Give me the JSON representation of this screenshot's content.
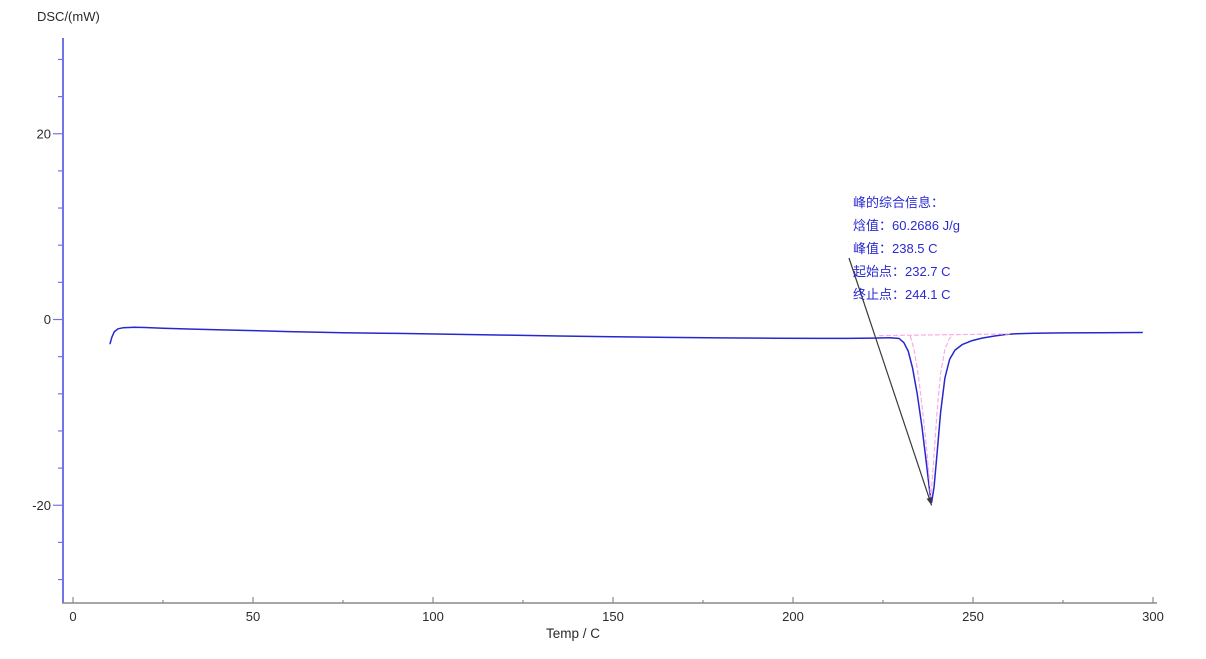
{
  "chart_data": {
    "type": "line",
    "title": "",
    "ylabel": "DSC/(mW)",
    "xlabel": "Temp / C",
    "xlim": [
      -3,
      301
    ],
    "ylim": [
      -30.5,
      30.5
    ],
    "grid": false,
    "legend": "none",
    "x_major_ticks": [
      0,
      50,
      100,
      150,
      200,
      250,
      300
    ],
    "x_minor_ticks": [
      25,
      75,
      125,
      175,
      225,
      275
    ],
    "y_major_ticks": [
      20,
      0,
      -20
    ],
    "y_minor_ticks": [
      28,
      24,
      16,
      12,
      8,
      4,
      -4,
      -8,
      -12,
      -16,
      -24,
      -28
    ],
    "series": [
      {
        "name": "dsc-curve",
        "color": "#2727cf",
        "style": "solid",
        "points": [
          [
            10.3,
            -2.6
          ],
          [
            10.8,
            -1.9
          ],
          [
            11.5,
            -1.3
          ],
          [
            12.5,
            -1.0
          ],
          [
            14,
            -0.88
          ],
          [
            17,
            -0.84
          ],
          [
            20,
            -0.86
          ],
          [
            25,
            -0.94
          ],
          [
            32,
            -1.02
          ],
          [
            40,
            -1.1
          ],
          [
            50,
            -1.2
          ],
          [
            60,
            -1.3
          ],
          [
            75,
            -1.42
          ],
          [
            90,
            -1.5
          ],
          [
            105,
            -1.58
          ],
          [
            120,
            -1.68
          ],
          [
            135,
            -1.78
          ],
          [
            150,
            -1.86
          ],
          [
            165,
            -1.93
          ],
          [
            180,
            -1.98
          ],
          [
            195,
            -2.01
          ],
          [
            207,
            -2.03
          ],
          [
            215,
            -2.03
          ],
          [
            222,
            -2.0
          ],
          [
            227,
            -1.97
          ],
          [
            229.5,
            -2.05
          ],
          [
            230.8,
            -2.5
          ],
          [
            232,
            -3.4
          ],
          [
            233.2,
            -5.2
          ],
          [
            234.5,
            -8.0
          ],
          [
            235.8,
            -11.5
          ],
          [
            237,
            -15.3
          ],
          [
            238,
            -18.6
          ],
          [
            238.5,
            -19.7
          ],
          [
            239.2,
            -18.0
          ],
          [
            240,
            -14.5
          ],
          [
            241,
            -10.0
          ],
          [
            242.2,
            -6.3
          ],
          [
            243.5,
            -4.3
          ],
          [
            245,
            -3.3
          ],
          [
            247,
            -2.7
          ],
          [
            249.5,
            -2.3
          ],
          [
            252.5,
            -2.0
          ],
          [
            256,
            -1.78
          ],
          [
            259,
            -1.62
          ],
          [
            262,
            -1.54
          ],
          [
            267,
            -1.48
          ],
          [
            275,
            -1.44
          ],
          [
            285,
            -1.42
          ],
          [
            297,
            -1.4
          ]
        ]
      },
      {
        "name": "peak-baseline",
        "color": "#f9aee0",
        "style": "dashed",
        "points": [
          [
            224,
            -1.73
          ],
          [
            260.5,
            -1.55
          ]
        ]
      },
      {
        "name": "peak-construction",
        "color": "#f9aee0",
        "style": "dashed",
        "points": [
          [
            232.6,
            -1.8
          ],
          [
            233.6,
            -3.2
          ],
          [
            234.8,
            -6.0
          ],
          [
            236.0,
            -9.8
          ],
          [
            237.2,
            -14.2
          ],
          [
            238.3,
            -19.2
          ],
          [
            239.1,
            -15.0
          ],
          [
            240.0,
            -10.0
          ],
          [
            241.0,
            -5.8
          ],
          [
            242.2,
            -3.2
          ],
          [
            243.4,
            -2.1
          ],
          [
            244.2,
            -1.75
          ]
        ]
      }
    ],
    "annotation": {
      "color": "#2a2ad0",
      "lines": [
        "峰的综合信息：",
        "焓值：60.2686 J/g",
        "峰值：238.5 C",
        "起始点：232.7 C",
        "终止点：244.1 C"
      ],
      "peak": {
        "enthalpy_J_per_g": 60.2686,
        "peak_c": 238.5,
        "onset_c": 232.7,
        "endset_c": 244.1
      }
    },
    "colors": {
      "y_axis": "#7373e8",
      "x_axis": "#8a8a8a",
      "tick_label": "#2b2b2b",
      "curve": "#2727cf",
      "baseline_pink": "#f9aee0",
      "leader_line": "#3a3a3a",
      "annotation_text": "#2a2ad0"
    }
  }
}
